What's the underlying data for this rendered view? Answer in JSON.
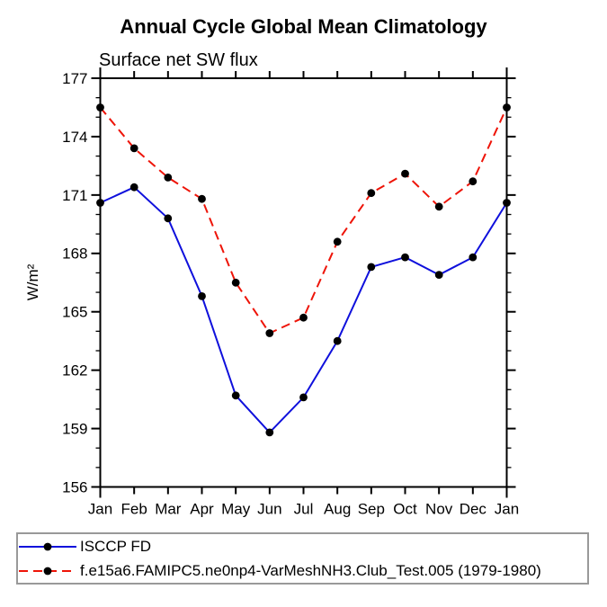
{
  "title": "Annual Cycle Global Mean Climatology",
  "subtitle": "Surface net SW flux",
  "ylabel": "W/m²",
  "chart_data": {
    "type": "line",
    "categories": [
      "Jan",
      "Feb",
      "Mar",
      "Apr",
      "May",
      "Jun",
      "Jul",
      "Aug",
      "Sep",
      "Oct",
      "Nov",
      "Dec",
      "Jan"
    ],
    "series": [
      {
        "name": "ISCCP FD",
        "color": "#0f10dc",
        "line_style": "solid",
        "marker": "filled-circle",
        "marker_color": "#000000",
        "values": [
          170.6,
          171.4,
          169.8,
          165.8,
          160.7,
          158.8,
          160.6,
          163.5,
          167.3,
          167.8,
          166.9,
          167.8,
          170.6
        ]
      },
      {
        "name": "f.e15a6.FAMIPC5.ne0np4-VarMeshNH3.Club_Test.005 (1979-1980)",
        "color": "#ee1408",
        "line_style": "dashed",
        "marker": "filled-circle",
        "marker_color": "#000000",
        "values": [
          175.5,
          173.4,
          171.9,
          170.8,
          166.5,
          163.9,
          164.7,
          168.6,
          171.1,
          172.1,
          170.4,
          171.7,
          175.5
        ]
      }
    ],
    "title": "Annual Cycle Global Mean Climatology",
    "subtitle": "Surface net SW flux",
    "xlabel": "",
    "ylabel": "W/m²",
    "ylim": [
      156,
      177
    ],
    "yticks_major": [
      156,
      159,
      162,
      165,
      168,
      171,
      174,
      177
    ],
    "ytick_minor_step": 1,
    "grid": false,
    "legend_position": "bottom",
    "axis_color": "#000000"
  }
}
